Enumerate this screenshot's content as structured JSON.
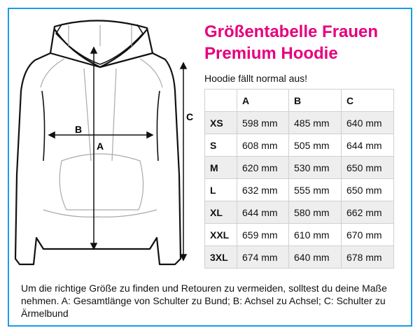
{
  "title": {
    "line1": "Größentabelle Frauen",
    "line2": "Premium Hoodie"
  },
  "subtitle": "Hoodie fällt normal aus!",
  "diagram_labels": {
    "a": "A",
    "b": "B",
    "c": "C"
  },
  "table": {
    "headers": [
      "",
      "A",
      "B",
      "C"
    ],
    "rows": [
      [
        "XS",
        "598 mm",
        "485 mm",
        "640 mm"
      ],
      [
        "S",
        "608 mm",
        "505 mm",
        "644 mm"
      ],
      [
        "M",
        "620 mm",
        "530 mm",
        "650 mm"
      ],
      [
        "L",
        "632 mm",
        "555 mm",
        "650 mm"
      ],
      [
        "XL",
        "644 mm",
        "580 mm",
        "662 mm"
      ],
      [
        "XXL",
        "659 mm",
        "610 mm",
        "670 mm"
      ],
      [
        "3XL",
        "674 mm",
        "640 mm",
        "678 mm"
      ]
    ]
  },
  "note": "Um die richtige Größe zu finden und Retouren zu vermeiden, solltest du deine Maße nehmen. A: Gesamtlänge von Schulter zu Bund; B: Achsel zu Achsel; C: Schulter zu Ärmelbund",
  "colors": {
    "frame": "#1a9be8",
    "title": "#e6007e"
  }
}
